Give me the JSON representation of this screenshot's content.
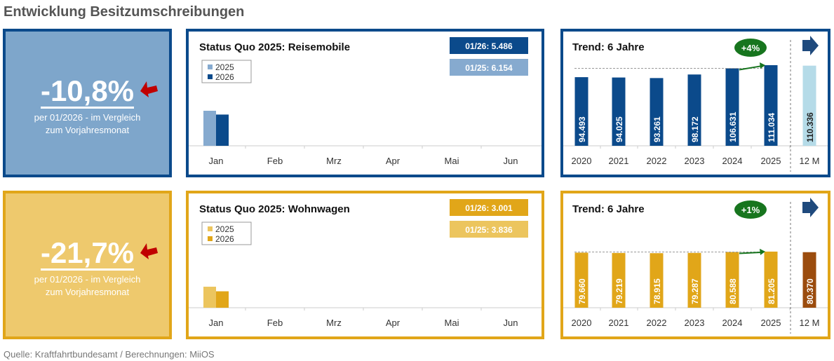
{
  "title": "Entwicklung Besitzumschreibungen",
  "source": "Quelle: Kraftfahrtbundesamt / Berechnungen: MiiOS",
  "colors": {
    "blue_dark": "#0b4a8b",
    "blue_light": "#86aacf",
    "blue_kpi": "#7ea6cb",
    "blue_12m": "#b5dbe8",
    "gold_dark": "#e1a619",
    "gold_light": "#ecc55e",
    "gold_kpi": "#eec96d",
    "brown_12m": "#9b4c0e",
    "trend_green": "#17751e",
    "down_red": "#c00000"
  },
  "rows": [
    {
      "kpi": {
        "value": "-10,8%",
        "line1": "per 01/2026 - im Vergleich",
        "line2": "zum Vorjahresmonat",
        "icon": "arrow-down-left-icon"
      }
    },
    {
      "kpi": {
        "value": "-21,7%",
        "line1": "per 01/2026 - im Vergleich",
        "line2": "zum Vorjahresmonat",
        "icon": "arrow-down-left-icon"
      }
    }
  ],
  "chart_data": [
    {
      "type": "bar",
      "title": "Status Quo 2025: Reisemobile",
      "categories": [
        "Jan",
        "Feb",
        "Mrz",
        "Apr",
        "Mai",
        "Jun"
      ],
      "series": [
        {
          "name": "2025",
          "values": [
            6154,
            null,
            null,
            null,
            null,
            null
          ],
          "labels": [
            "6.154"
          ]
        },
        {
          "name": "2026",
          "values": [
            5486,
            null,
            null,
            null,
            null,
            null
          ],
          "labels": [
            "5.486"
          ]
        }
      ],
      "badges": [
        "01/26: 5.486",
        "01/25: 6.154"
      ],
      "ylim": [
        0,
        17600
      ],
      "legend": "top-left",
      "grid": false
    },
    {
      "type": "bar",
      "title": "Trend: 6 Jahre",
      "categories": [
        "2020",
        "2021",
        "2022",
        "2023",
        "2024",
        "2025",
        "12 M"
      ],
      "values": [
        94493,
        94025,
        93261,
        98172,
        106631,
        111034,
        110336
      ],
      "labels": [
        "94.493",
        "94.025",
        "93.261",
        "98.172",
        "106.631",
        "111.034",
        "110.336"
      ],
      "change": "+4%",
      "ylim": [
        0,
        138000
      ],
      "grid": false
    },
    {
      "type": "bar",
      "title": "Status Quo 2025: Wohnwagen",
      "categories": [
        "Jan",
        "Feb",
        "Mrz",
        "Apr",
        "Mai",
        "Jun"
      ],
      "series": [
        {
          "name": "2025",
          "values": [
            3836,
            null,
            null,
            null,
            null,
            null
          ],
          "labels": [
            "3.836"
          ]
        },
        {
          "name": "2026",
          "values": [
            3001,
            null,
            null,
            null,
            null,
            null
          ],
          "labels": [
            "3.001"
          ]
        }
      ],
      "badges": [
        "01/26: 3.001",
        "01/25: 3.836"
      ],
      "ylim": [
        0,
        18300
      ],
      "legend": "top-left",
      "grid": false
    },
    {
      "type": "bar",
      "title": "Trend: 6 Jahre",
      "categories": [
        "2020",
        "2021",
        "2022",
        "2023",
        "2024",
        "2025",
        "12 M"
      ],
      "values": [
        79660,
        79219,
        78915,
        79287,
        80588,
        81205,
        80370
      ],
      "labels": [
        "79.660",
        "79.219",
        "78.915",
        "79.287",
        "80.588",
        "81.205",
        "80.370"
      ],
      "change": "+1%",
      "ylim": [
        0,
        145000
      ],
      "grid": false
    }
  ]
}
